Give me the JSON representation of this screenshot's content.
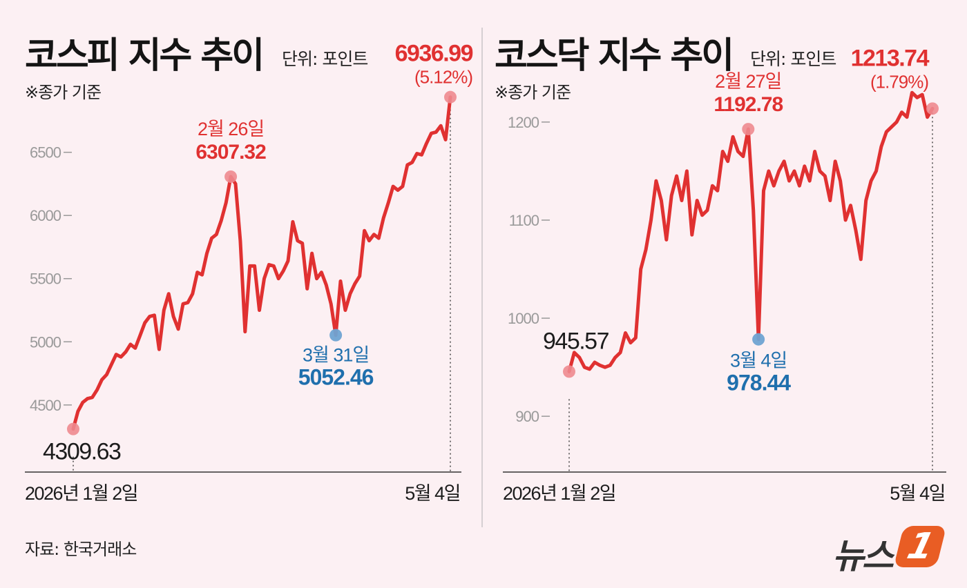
{
  "source": "자료: 한국거래소",
  "logo": {
    "text": "뉴스",
    "badge": "1"
  },
  "colors": {
    "line": "#e03131",
    "high": "#e03131",
    "low": "#1f6fad",
    "marker_red": "#ee8a8f",
    "marker_blue": "#6fa3d2",
    "background": "#fcf0f3"
  },
  "chart_data": [
    {
      "type": "line",
      "title": "코스피 지수 추이",
      "unit": "단위: 포인트",
      "note": "※종가 기준",
      "ylim": [
        4100,
        7050
      ],
      "yticks": [
        "4500",
        "5000",
        "5500",
        "6000",
        "6500"
      ],
      "x_start_label": "2026년 1월 2일",
      "x_end_label": "5월 4일",
      "values": [
        4309.63,
        4450,
        4520,
        4550,
        4560,
        4620,
        4700,
        4740,
        4820,
        4900,
        4880,
        4920,
        4980,
        4950,
        5050,
        5150,
        5200,
        5210,
        4940,
        5250,
        5380,
        5200,
        5100,
        5300,
        5310,
        5380,
        5550,
        5530,
        5700,
        5820,
        5850,
        5960,
        6100,
        6307.32,
        6250,
        5800,
        5080,
        5600,
        5600,
        5250,
        5500,
        5610,
        5600,
        5500,
        5560,
        5640,
        5950,
        5800,
        5780,
        5420,
        5700,
        5500,
        5550,
        5450,
        5300,
        5052.46,
        5480,
        5250,
        5380,
        5460,
        5520,
        5880,
        5800,
        5850,
        5820,
        5980,
        6100,
        6230,
        6200,
        6230,
        6400,
        6420,
        6490,
        6480,
        6570,
        6650,
        6660,
        6710,
        6600,
        6936.99
      ],
      "start": {
        "label": "4309.63"
      },
      "high": {
        "date": "2월 26일",
        "value": "6307.32",
        "index": 33
      },
      "low": {
        "date": "3월 31일",
        "value": "5052.46",
        "index": 55
      },
      "end": {
        "value": "6936.99",
        "change": "(5.12%)"
      }
    },
    {
      "type": "line",
      "title": "코스닥 지수 추이",
      "unit": "단위: 포인트",
      "note": "※종가 기준",
      "ylim": [
        860,
        1240
      ],
      "yticks": [
        "900",
        "1000",
        "1100",
        "1200"
      ],
      "x_start_label": "2026년 1월 2일",
      "x_end_label": "5월 4일",
      "values": [
        945.57,
        965,
        960,
        950,
        948,
        955,
        952,
        950,
        952,
        960,
        965,
        985,
        975,
        980,
        1050,
        1070,
        1100,
        1140,
        1120,
        1080,
        1125,
        1145,
        1120,
        1150,
        1085,
        1120,
        1105,
        1110,
        1135,
        1130,
        1170,
        1160,
        1185,
        1170,
        1165,
        1192.78,
        1110,
        978.44,
        1130,
        1150,
        1135,
        1150,
        1160,
        1140,
        1150,
        1135,
        1155,
        1140,
        1170,
        1150,
        1145,
        1120,
        1160,
        1140,
        1100,
        1115,
        1090,
        1060,
        1120,
        1140,
        1150,
        1175,
        1190,
        1195,
        1200,
        1210,
        1205,
        1230,
        1225,
        1228,
        1205,
        1213.74
      ],
      "start": {
        "label": "945.57"
      },
      "high": {
        "date": "2월 27일",
        "value": "1192.78",
        "index": 35
      },
      "low": {
        "date": "3월 4일",
        "value": "978.44",
        "index": 37
      },
      "end": {
        "value": "1213.74",
        "change": "(1.79%)"
      }
    }
  ]
}
